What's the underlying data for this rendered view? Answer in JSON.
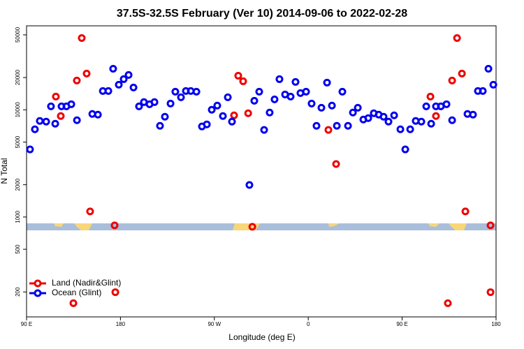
{
  "chart_data": {
    "type": "scatter",
    "title": "37.5S-32.5S February (Ver 10)   2014-09-06 to 2022-02-28",
    "x_label": "Longitude (deg E)",
    "y_label": "N Total",
    "xlim": [
      90,
      540
    ],
    "xticks": [
      {
        "value": 90,
        "label": "90 E"
      },
      {
        "value": 180,
        "label": "180"
      },
      {
        "value": 270,
        "label": "90 W"
      },
      {
        "value": 360,
        "label": "0"
      },
      {
        "value": 450,
        "label": "90 E"
      },
      {
        "value": 540,
        "label": "180"
      }
    ],
    "ylim": [
      117,
      60700
    ],
    "yticks": [
      200,
      500,
      1000,
      2000,
      5000,
      10000,
      20000,
      50000
    ],
    "log_y": true,
    "legend": "bottom-left",
    "series": [
      {
        "name": "Land (Nadir&Glint)",
        "color": "#ee0000",
        "x": [
          118.1,
          122.8,
          134.9,
          138.2,
          142.9,
          147.6,
          150.9,
          174.4,
          175.1,
          288.9,
          292.9,
          297.6,
          302.4,
          306.4,
          379.3,
          386.7,
          477.1,
          482.4,
          493.8,
          497.9,
          502.6,
          507.3,
          510.6,
          534.7,
          534.7
        ],
        "values": [
          13280,
          8740,
          157,
          18750,
          46670,
          21770,
          1127,
          836,
          199,
          8870,
          20800,
          18450,
          9280,
          811,
          6490,
          3120,
          13280,
          8740,
          157,
          18750,
          46670,
          21770,
          1127,
          836,
          199
        ]
      },
      {
        "name": "Ocean (Glint)",
        "color": "#0000ee",
        "x": [
          93.3,
          98.0,
          102.7,
          108.8,
          113.4,
          117.5,
          123.5,
          128.2,
          132.9,
          138.3,
          153.0,
          158.4,
          163.1,
          168.4,
          173.0,
          178.4,
          183.1,
          187.8,
          192.5,
          197.8,
          202.5,
          207.9,
          212.6,
          217.9,
          222.6,
          228.0,
          232.6,
          238.0,
          242.7,
          247.4,
          252.8,
          258.1,
          262.8,
          267.5,
          272.8,
          278.2,
          282.9,
          286.9,
          303.6,
          308.3,
          313.0,
          317.7,
          323.0,
          327.7,
          332.4,
          337.8,
          343.1,
          347.8,
          352.5,
          357.9,
          363.2,
          367.9,
          372.6,
          378.0,
          382.7,
          387.4,
          392.7,
          398.1,
          402.8,
          407.5,
          412.8,
          417.5,
          422.8,
          427.5,
          432.2,
          436.9,
          442.3,
          448.3,
          453.0,
          457.7,
          463.0,
          468.4,
          473.1,
          477.8,
          482.4,
          487.1,
          492.5,
          497.9,
          512.6,
          517.9,
          522.6,
          527.3,
          532.7,
          537.4
        ],
        "values": [
          4270,
          6580,
          7870,
          7760,
          10770,
          7410,
          10770,
          10770,
          11270,
          7990,
          9140,
          9010,
          14970,
          14970,
          24150,
          17130,
          19300,
          21120,
          16130,
          10770,
          11790,
          11270,
          11790,
          7090,
          8610,
          11440,
          14750,
          13090,
          14970,
          14970,
          14750,
          6990,
          7310,
          10000,
          10940,
          8740,
          13090,
          7760,
          1990,
          12140,
          14750,
          6490,
          9420,
          12510,
          19300,
          13900,
          13280,
          18190,
          14320,
          14750,
          11440,
          7090,
          10450,
          17910,
          10940,
          7090,
          14750,
          7090,
          9420,
          10450,
          8110,
          8360,
          9280,
          9010,
          8610,
          7760,
          8870,
          6580,
          4270,
          6580,
          7870,
          7760,
          10770,
          7410,
          10770,
          10770,
          11270,
          7990,
          9140,
          9010,
          14970,
          14970,
          24150,
          17130
        ]
      }
    ]
  }
}
